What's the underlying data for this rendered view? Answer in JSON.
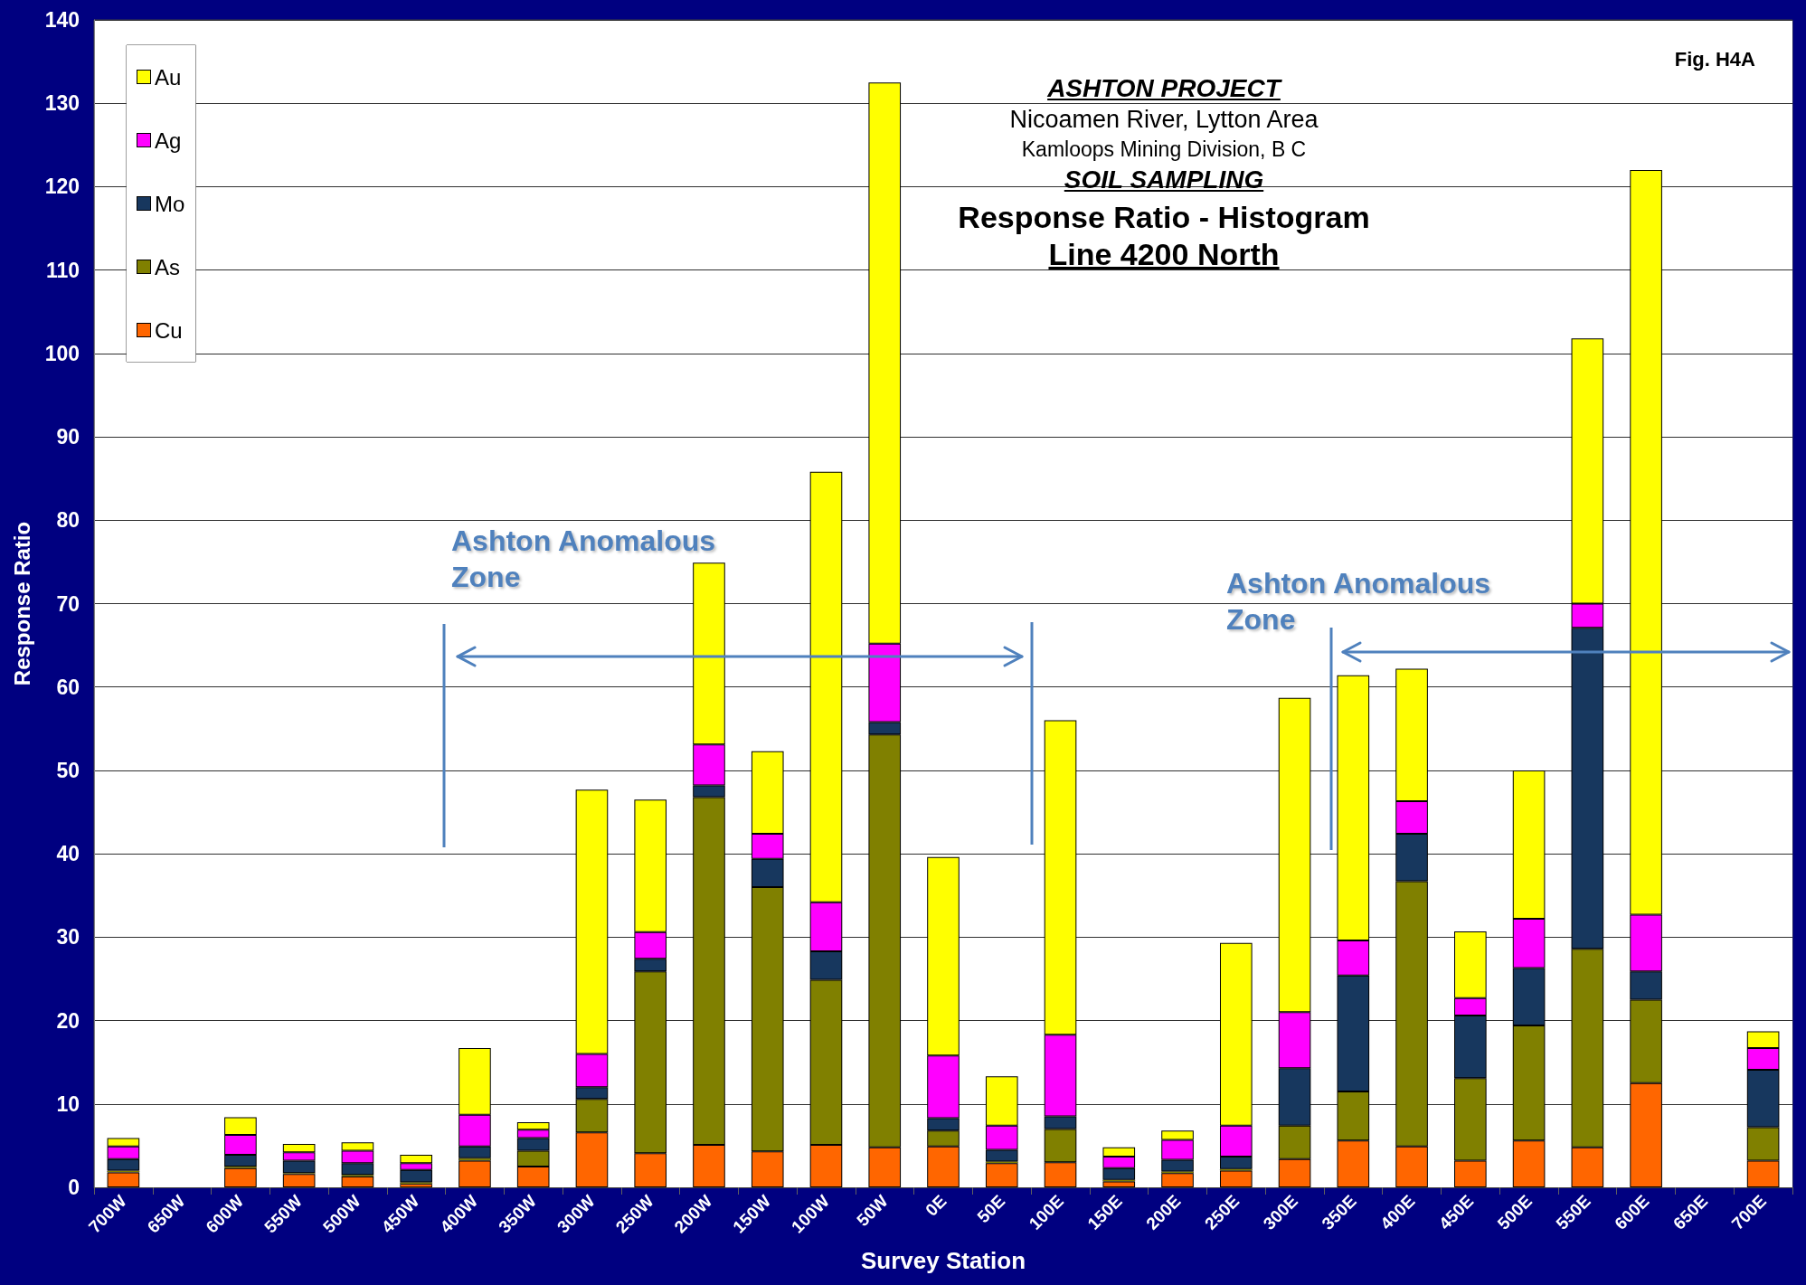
{
  "chart_data": {
    "type": "bar",
    "title": "ASHTON PROJECT\nNicoamen River, Lytton Area\nKamloops Mining Division, B C\nSOIL SAMPLING\nResponse Ratio - Histogram\nLine 4200 North",
    "xlabel": "Survey Station",
    "ylabel": "Response Ratio",
    "categories": [
      "700W",
      "650W",
      "600W",
      "550W",
      "500W",
      "450W",
      "400W",
      "350W",
      "300W",
      "250W",
      "200W",
      "150W",
      "100W",
      "50W",
      "0E",
      "50E",
      "100E",
      "150E",
      "200E",
      "250E",
      "300E",
      "350E",
      "400E",
      "450E",
      "500E",
      "550E",
      "600E",
      "650E",
      "700E"
    ],
    "series": [
      {
        "name": "Cu",
        "color": "#ff6600",
        "values": [
          1.8,
          null,
          2.3,
          1.6,
          1.3,
          0.4,
          3.2,
          2.5,
          6.6,
          4.1,
          5.1,
          4.3,
          5.1,
          4.8,
          4.9,
          2.9,
          3.0,
          0.7,
          1.7,
          2.0,
          3.4,
          5.6,
          4.9,
          3.2,
          5.6,
          4.8,
          12.5,
          null,
          3.2
        ]
      },
      {
        "name": "As",
        "color": "#808000",
        "values": [
          0.2,
          null,
          0.2,
          0.1,
          0.2,
          0.2,
          0.3,
          1.9,
          4.0,
          21.8,
          41.7,
          31.7,
          19.8,
          49.5,
          1.9,
          0.2,
          4.0,
          0.2,
          0.2,
          0.2,
          4.0,
          5.9,
          31.8,
          9.9,
          13.8,
          23.8,
          10.0,
          null,
          4.0
        ]
      },
      {
        "name": "Mo",
        "color": "#17375e",
        "values": [
          1.4,
          null,
          1.4,
          1.5,
          1.4,
          1.5,
          1.4,
          1.5,
          1.4,
          1.5,
          1.4,
          3.4,
          3.4,
          1.5,
          1.5,
          1.4,
          1.5,
          1.4,
          1.4,
          1.5,
          6.9,
          13.9,
          5.7,
          7.5,
          6.9,
          38.5,
          3.4,
          null,
          6.9
        ]
      },
      {
        "name": "Ag",
        "color": "#ff00ff",
        "values": [
          1.5,
          null,
          2.4,
          1.0,
          1.5,
          0.8,
          3.8,
          1.0,
          4.0,
          3.2,
          4.9,
          3.0,
          5.9,
          9.4,
          7.5,
          2.9,
          9.8,
          1.4,
          2.4,
          3.7,
          6.7,
          4.2,
          3.9,
          2.1,
          5.9,
          2.9,
          6.8,
          null,
          2.6
        ]
      },
      {
        "name": "Au",
        "color": "#ffff00",
        "values": [
          1.0,
          null,
          2.1,
          1.0,
          1.0,
          1.0,
          8.0,
          0.9,
          31.7,
          15.9,
          21.8,
          9.9,
          51.6,
          67.3,
          23.8,
          5.9,
          37.7,
          1.1,
          1.1,
          21.9,
          37.7,
          31.8,
          15.9,
          8.0,
          17.8,
          31.8,
          89.3,
          null,
          2.0
        ]
      }
    ],
    "stacked": true,
    "ylim": [
      0,
      140
    ],
    "yticks": [
      0,
      10,
      20,
      30,
      40,
      50,
      60,
      70,
      80,
      90,
      100,
      110,
      120,
      130,
      140
    ],
    "grid": "y",
    "legend": "top left",
    "annotations": [
      "Ashton Anomalous\nZone",
      "Ashton Anomalous\nZone",
      "Fig. H4A"
    ]
  }
}
